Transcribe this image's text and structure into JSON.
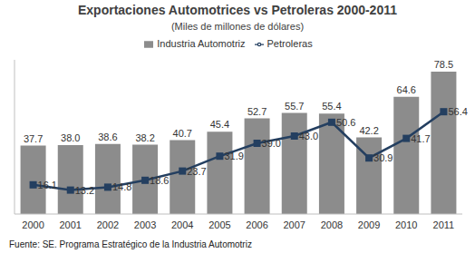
{
  "chart_data": {
    "type": "bar",
    "title": "Exportaciones Automotrices vs Petroleras 2000-2011",
    "subtitle": "(Miles de millones de dólares)",
    "source": "Fuente: SE. Programa Estratégico de la Industria Automotriz",
    "categories": [
      "2000",
      "2001",
      "2002",
      "2003",
      "2004",
      "2005",
      "2006",
      "2007",
      "2008",
      "2009",
      "2010",
      "2011"
    ],
    "series": [
      {
        "name": "Industria Automotriz",
        "type": "bar",
        "color": "#8c8c8c",
        "values": [
          37.7,
          38.0,
          38.6,
          38.2,
          40.7,
          45.4,
          52.7,
          55.7,
          55.4,
          42.2,
          64.6,
          78.5
        ],
        "value_labels": [
          "37.7",
          "38.0",
          "38.6",
          "38.2",
          "40.7",
          "45.4",
          "52.7",
          "55.7",
          "55.4",
          "42.2",
          "64.6",
          "78.5"
        ]
      },
      {
        "name": "Petroleras",
        "type": "line",
        "color": "#243f60",
        "marker": "square",
        "line_style": "solid",
        "values": [
          16.1,
          13.2,
          14.8,
          18.6,
          23.7,
          31.9,
          39.0,
          43.0,
          50.6,
          30.9,
          41.7,
          56.4
        ],
        "value_labels": [
          "16.1",
          "13.2",
          "14.8",
          "18.6",
          "23.7",
          "31.9",
          "39.0",
          "43.0",
          "50.6",
          "30.9",
          "41.7",
          "56.4"
        ]
      }
    ],
    "ylim": [
      0,
      85
    ],
    "legend": "top",
    "data_labels": true,
    "grid": false,
    "tick_labels": "x"
  }
}
